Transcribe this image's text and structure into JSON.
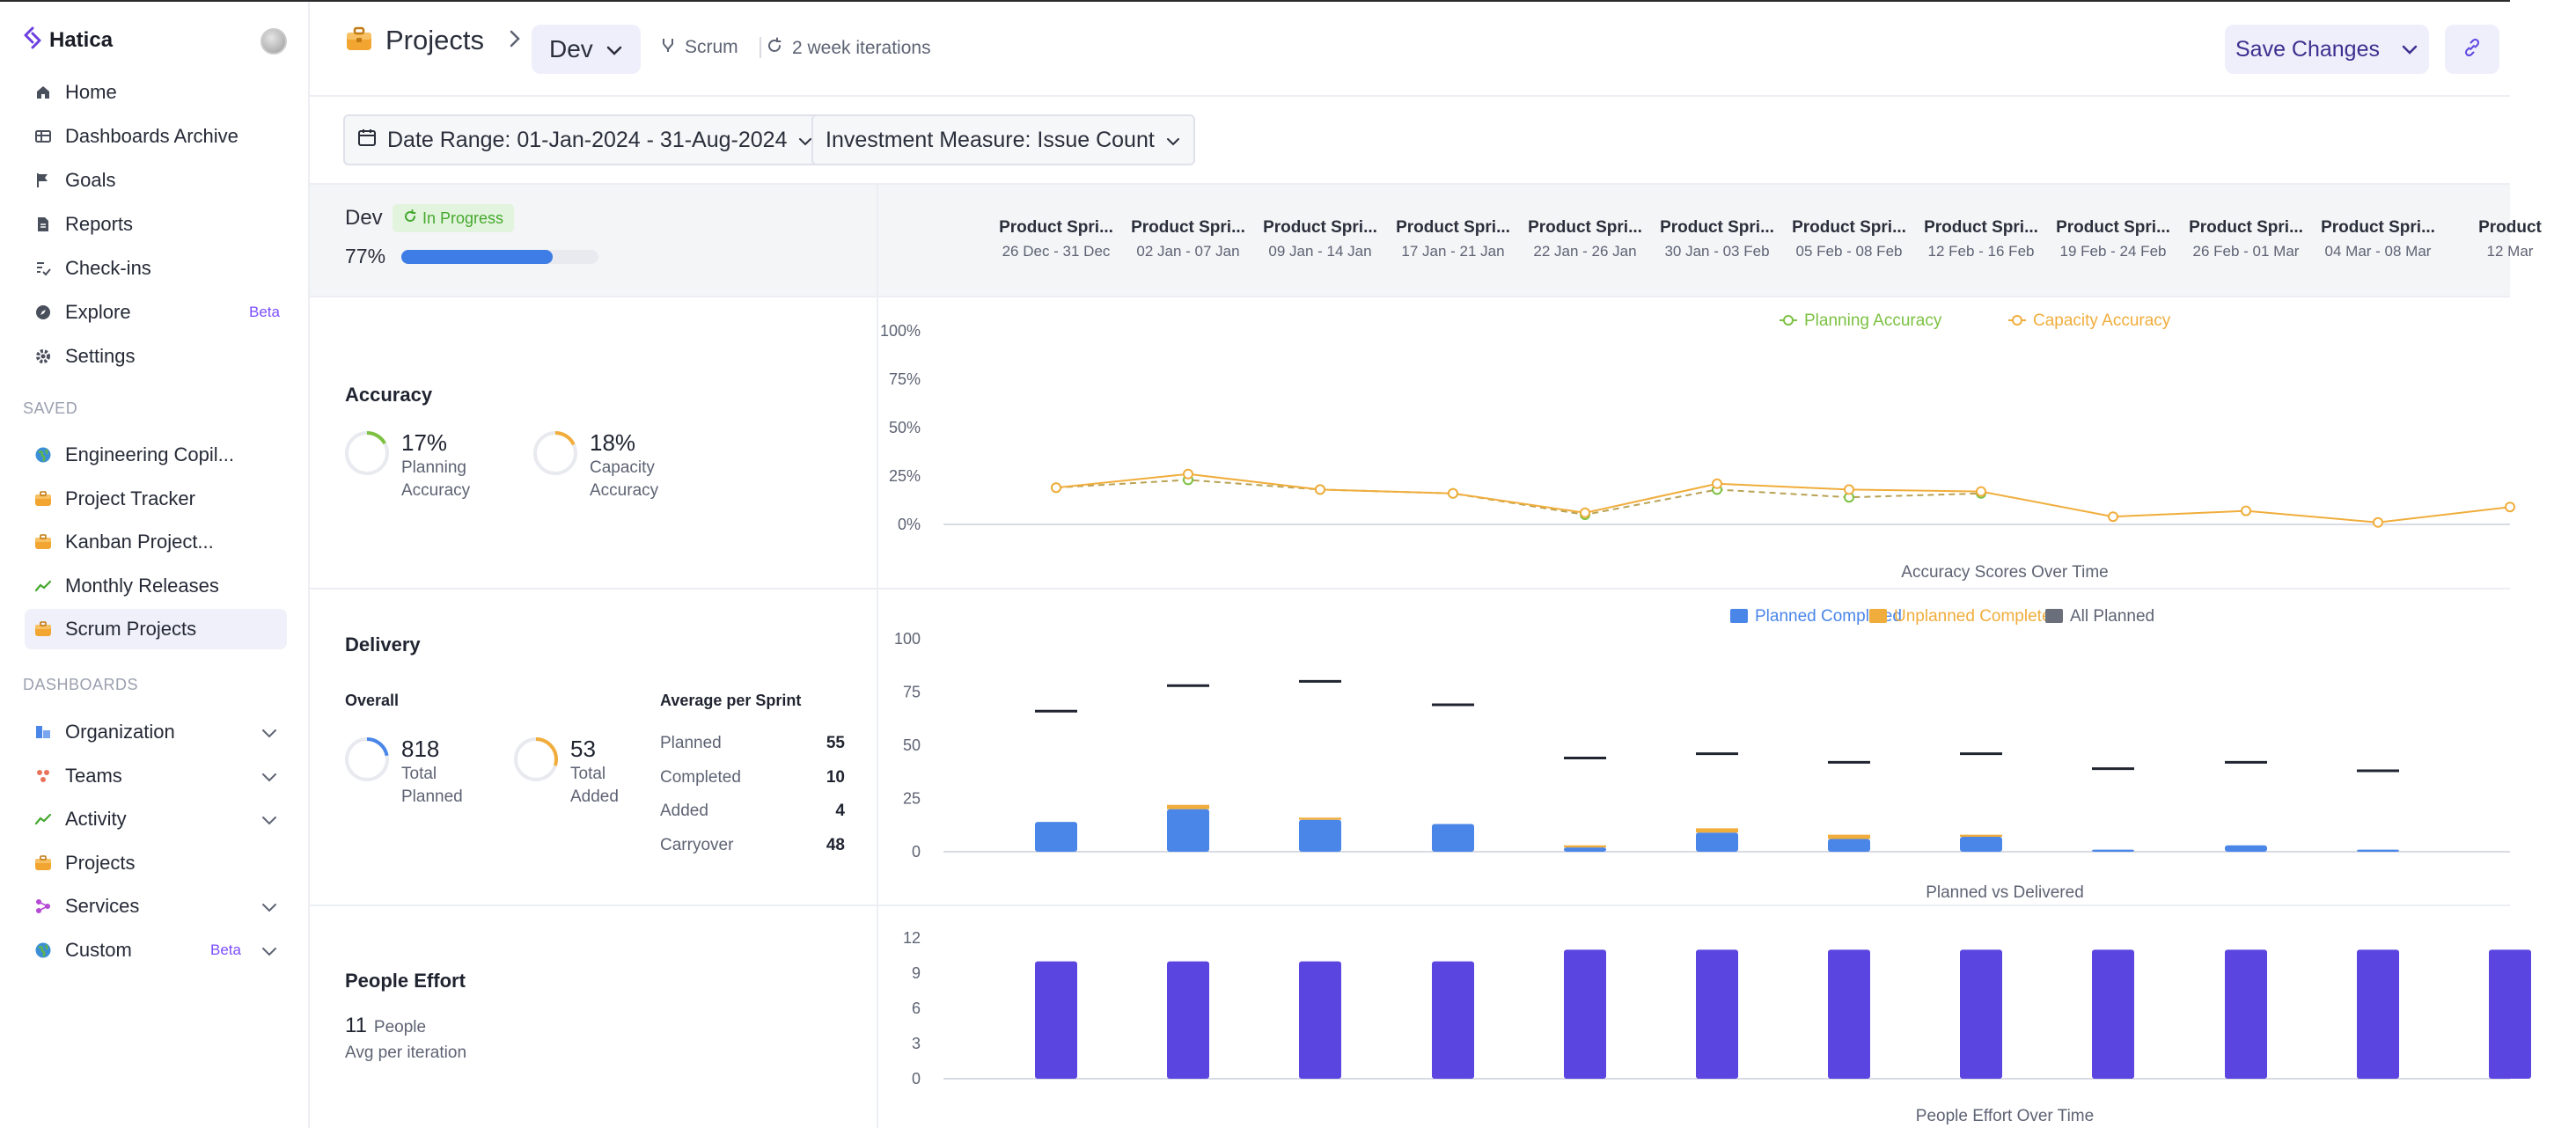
{
  "sidebar": {
    "brand": "Hatica",
    "nav": [
      {
        "label": "Home",
        "icon": "home-icon"
      },
      {
        "label": "Dashboards Archive",
        "icon": "table-icon"
      },
      {
        "label": "Goals",
        "icon": "flag-icon"
      },
      {
        "label": "Reports",
        "icon": "document-icon"
      },
      {
        "label": "Check-ins",
        "icon": "checkin-icon"
      },
      {
        "label": "Explore",
        "icon": "compass-icon",
        "badge": "Beta"
      },
      {
        "label": "Settings",
        "icon": "gear-icon"
      }
    ],
    "saved_label": "SAVED",
    "saved": [
      {
        "label": "Engineering Copil...",
        "icon": "globe-icon"
      },
      {
        "label": "Project Tracker",
        "icon": "briefcase-icon"
      },
      {
        "label": "Kanban Project...",
        "icon": "briefcase-icon"
      },
      {
        "label": "Monthly Releases",
        "icon": "trend-icon"
      },
      {
        "label": "Scrum Projects",
        "icon": "briefcase-icon"
      }
    ],
    "dashboards_label": "DASHBOARDS",
    "dashboards": [
      {
        "label": "Organization",
        "icon": "org-icon"
      },
      {
        "label": "Teams",
        "icon": "teams-icon"
      },
      {
        "label": "Activity",
        "icon": "trend-icon"
      },
      {
        "label": "Projects",
        "icon": "briefcase-icon"
      },
      {
        "label": "Services",
        "icon": "services-icon"
      },
      {
        "label": "Custom",
        "icon": "globe-icon",
        "badge": "Beta"
      }
    ]
  },
  "header": {
    "title": "Projects",
    "selected_project": "Dev",
    "methodology": "Scrum",
    "iteration": "2 week iterations",
    "save_label": "Save Changes"
  },
  "filters": {
    "date_range": "Date Range: 01-Jan-2024 - 31-Aug-2024",
    "investment": "Investment Measure: Issue Count"
  },
  "project": {
    "name": "Dev",
    "status": "In Progress",
    "progress_label": "77%",
    "progress": 0.77
  },
  "sprints": [
    {
      "name": "Product Spri...",
      "dates": "26 Dec - 31 Dec"
    },
    {
      "name": "Product Spri...",
      "dates": "02 Jan - 07 Jan"
    },
    {
      "name": "Product Spri...",
      "dates": "09 Jan - 14 Jan"
    },
    {
      "name": "Product Spri...",
      "dates": "17 Jan - 21 Jan"
    },
    {
      "name": "Product Spri...",
      "dates": "22 Jan - 26 Jan"
    },
    {
      "name": "Product Spri...",
      "dates": "30 Jan - 03 Feb"
    },
    {
      "name": "Product Spri...",
      "dates": "05 Feb - 08 Feb"
    },
    {
      "name": "Product Spri...",
      "dates": "12 Feb - 16 Feb"
    },
    {
      "name": "Product Spri...",
      "dates": "19 Feb - 24 Feb"
    },
    {
      "name": "Product Spri...",
      "dates": "26 Feb - 01 Mar"
    },
    {
      "name": "Product Spri...",
      "dates": "04 Mar - 08 Mar"
    },
    {
      "name": "Product",
      "dates": "12 Mar"
    }
  ],
  "accuracy": {
    "title": "Accuracy",
    "planning_value": "17%",
    "planning_pct": 0.17,
    "planning_label": [
      "Planning",
      "Accuracy"
    ],
    "capacity_value": "18%",
    "capacity_pct": 0.18,
    "capacity_label": [
      "Capacity",
      "Accuracy"
    ]
  },
  "delivery": {
    "title": "Delivery",
    "overall_label": "Overall",
    "avg_label": "Average per Sprint",
    "total_planned": "818",
    "total_planned_label": [
      "Total",
      "Planned"
    ],
    "total_added": "53",
    "total_added_label": [
      "Total",
      "Added"
    ],
    "planned_ring_pct": 0.22,
    "added_ring_pct": 0.3,
    "avg": [
      {
        "k": "Planned",
        "v": "55"
      },
      {
        "k": "Completed",
        "v": "10"
      },
      {
        "k": "Added",
        "v": "4"
      },
      {
        "k": "Carryover",
        "v": "48"
      }
    ]
  },
  "people": {
    "title": "People Effort",
    "count": "11",
    "count_label": "People",
    "avg_label": "Avg per iteration"
  },
  "colors": {
    "planning": "#7cc142",
    "capacity": "#f0ad3c",
    "planned_completed": "#4a86e8",
    "unplanned_completed": "#f0ad3c",
    "all_planned": "#6b6f7b",
    "effort": "#5b45e0"
  },
  "chart_data": [
    {
      "type": "line",
      "title": "Accuracy Scores Over Time",
      "categories": [
        "26 Dec - 31 Dec",
        "02 Jan - 07 Jan",
        "09 Jan - 14 Jan",
        "17 Jan - 21 Jan",
        "22 Jan - 26 Jan",
        "30 Jan - 03 Feb",
        "05 Feb - 08 Feb",
        "12 Feb - 16 Feb",
        "19 Feb - 24 Feb",
        "26 Feb - 01 Mar",
        "04 Mar - 08 Mar",
        "12 Mar"
      ],
      "ylim": [
        0,
        100
      ],
      "yticks": [
        "100%",
        "75%",
        "50%",
        "25%",
        "0%"
      ],
      "series": [
        {
          "name": "Planning Accuracy",
          "values": [
            19,
            23,
            18,
            16,
            5,
            18,
            14,
            16,
            null,
            null,
            null,
            null
          ]
        },
        {
          "name": "Capacity Accuracy",
          "values": [
            19,
            26,
            18,
            16,
            6,
            21,
            18,
            17,
            4,
            7,
            1,
            9
          ]
        }
      ]
    },
    {
      "type": "bar",
      "title": "Planned vs Delivered",
      "categories": [
        "26 Dec - 31 Dec",
        "02 Jan - 07 Jan",
        "09 Jan - 14 Jan",
        "17 Jan - 21 Jan",
        "22 Jan - 26 Jan",
        "30 Jan - 03 Feb",
        "05 Feb - 08 Feb",
        "12 Feb - 16 Feb",
        "19 Feb - 24 Feb",
        "26 Feb - 01 Mar",
        "04 Mar - 08 Mar"
      ],
      "ylim": [
        0,
        100
      ],
      "yticks": [
        "100",
        "75",
        "50",
        "25",
        "0"
      ],
      "series": [
        {
          "name": "Planned Completed",
          "values": [
            14,
            20,
            15,
            13,
            2,
            9,
            6,
            7,
            1,
            3,
            1
          ]
        },
        {
          "name": "Unplanned Completed",
          "values": [
            0,
            2,
            1,
            0,
            1,
            2,
            2,
            1,
            0,
            0,
            0
          ]
        },
        {
          "name": "All Planned",
          "values": [
            66,
            78,
            80,
            69,
            44,
            46,
            42,
            46,
            39,
            42,
            38
          ]
        }
      ]
    },
    {
      "type": "bar",
      "title": "People Effort Over Time",
      "categories": [
        "26 Dec - 31 Dec",
        "02 Jan - 07 Jan",
        "09 Jan - 14 Jan",
        "17 Jan - 21 Jan",
        "22 Jan - 26 Jan",
        "30 Jan - 03 Feb",
        "05 Feb - 08 Feb",
        "12 Feb - 16 Feb",
        "19 Feb - 24 Feb",
        "26 Feb - 01 Mar",
        "04 Mar - 08 Mar",
        "12 Mar"
      ],
      "ylim": [
        0,
        12
      ],
      "yticks": [
        "12",
        "9",
        "6",
        "3",
        "0"
      ],
      "series": [
        {
          "name": "People",
          "values": [
            10,
            10,
            10,
            10,
            11,
            11,
            11,
            11,
            11,
            11,
            11,
            11
          ]
        }
      ]
    }
  ]
}
